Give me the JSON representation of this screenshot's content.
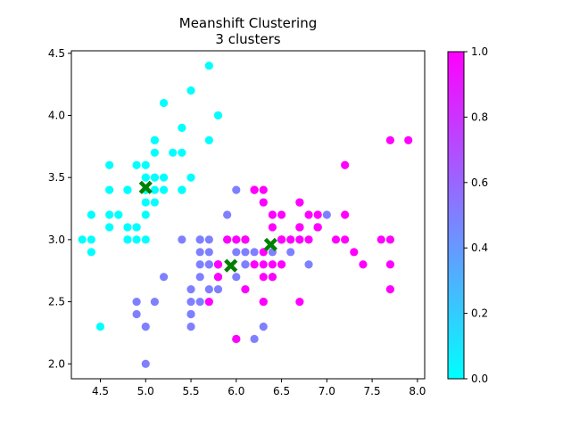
{
  "chart_data": {
    "type": "scatter",
    "title": "Meanshift Clustering",
    "subtitle": "3 clusters",
    "xlabel": "",
    "ylabel": "",
    "xlim": [
      4.18,
      8.08
    ],
    "ylim": [
      1.88,
      4.52
    ],
    "xticks": [
      "4.5",
      "5.0",
      "5.5",
      "6.0",
      "6.5",
      "7.0",
      "7.5",
      "8.0"
    ],
    "yticks": [
      "2.0",
      "2.5",
      "3.0",
      "3.5",
      "4.0",
      "4.5"
    ],
    "grid": false,
    "colorbar": {
      "range": [
        0.0,
        1.0
      ],
      "ticks": [
        "0.0",
        "0.2",
        "0.4",
        "0.6",
        "0.8",
        "1.0"
      ],
      "colormap": "cool",
      "color_min": "#00ffff",
      "color_max": "#ff00ff"
    },
    "series": [
      {
        "label_value": 0.0,
        "color": "#00ffff",
        "points": [
          [
            5.1,
            3.5
          ],
          [
            4.9,
            3.0
          ],
          [
            4.7,
            3.2
          ],
          [
            4.6,
            3.1
          ],
          [
            5.0,
            3.6
          ],
          [
            5.4,
            3.9
          ],
          [
            4.6,
            3.4
          ],
          [
            5.0,
            3.4
          ],
          [
            4.4,
            2.9
          ],
          [
            4.9,
            3.1
          ],
          [
            5.4,
            3.7
          ],
          [
            4.8,
            3.4
          ],
          [
            4.8,
            3.0
          ],
          [
            4.3,
            3.0
          ],
          [
            5.8,
            4.0
          ],
          [
            5.7,
            4.4
          ],
          [
            5.4,
            3.9
          ],
          [
            5.1,
            3.5
          ],
          [
            5.7,
            3.8
          ],
          [
            5.1,
            3.8
          ],
          [
            5.4,
            3.4
          ],
          [
            5.1,
            3.7
          ],
          [
            4.6,
            3.6
          ],
          [
            5.1,
            3.3
          ],
          [
            4.8,
            3.4
          ],
          [
            5.0,
            3.0
          ],
          [
            5.0,
            3.4
          ],
          [
            5.2,
            3.5
          ],
          [
            5.2,
            3.4
          ],
          [
            4.7,
            3.2
          ],
          [
            4.8,
            3.1
          ],
          [
            5.4,
            3.4
          ],
          [
            5.2,
            4.1
          ],
          [
            5.5,
            4.2
          ],
          [
            4.9,
            3.1
          ],
          [
            5.0,
            3.2
          ],
          [
            5.5,
            3.5
          ],
          [
            4.9,
            3.6
          ],
          [
            4.4,
            3.0
          ],
          [
            5.1,
            3.4
          ],
          [
            5.0,
            3.5
          ],
          [
            4.5,
            2.3
          ],
          [
            4.4,
            3.2
          ],
          [
            5.0,
            3.5
          ],
          [
            5.1,
            3.8
          ],
          [
            4.8,
            3.0
          ],
          [
            4.6,
            3.2
          ],
          [
            5.3,
            3.7
          ],
          [
            5.0,
            3.3
          ]
        ]
      },
      {
        "label_value": 0.5,
        "color": "#7f80ff",
        "points": [
          [
            5.5,
            2.3
          ],
          [
            5.7,
            2.8
          ],
          [
            4.9,
            2.4
          ],
          [
            5.2,
            2.7
          ],
          [
            5.0,
            2.0
          ],
          [
            5.9,
            3.0
          ],
          [
            6.0,
            2.2
          ],
          [
            6.1,
            2.9
          ],
          [
            5.6,
            2.9
          ],
          [
            5.6,
            3.0
          ],
          [
            5.8,
            2.7
          ],
          [
            6.2,
            2.2
          ],
          [
            5.6,
            2.5
          ],
          [
            5.9,
            3.2
          ],
          [
            6.1,
            2.8
          ],
          [
            6.3,
            2.5
          ],
          [
            6.1,
            2.8
          ],
          [
            6.4,
            2.9
          ],
          [
            5.7,
            2.6
          ],
          [
            5.5,
            2.4
          ],
          [
            5.5,
            2.4
          ],
          [
            5.8,
            2.7
          ],
          [
            6.0,
            2.7
          ],
          [
            5.4,
            3.0
          ],
          [
            6.0,
            3.4
          ],
          [
            6.3,
            2.3
          ],
          [
            5.6,
            3.0
          ],
          [
            5.5,
            2.5
          ],
          [
            5.5,
            2.6
          ],
          [
            6.1,
            3.0
          ],
          [
            5.8,
            2.6
          ],
          [
            5.0,
            2.3
          ],
          [
            5.6,
            2.7
          ],
          [
            5.7,
            3.0
          ],
          [
            5.7,
            2.9
          ],
          [
            6.2,
            2.9
          ],
          [
            5.1,
            2.5
          ],
          [
            5.7,
            2.8
          ],
          [
            4.9,
            2.5
          ],
          [
            6.0,
            2.9
          ],
          [
            6.6,
            2.9
          ],
          [
            6.5,
            2.8
          ],
          [
            6.6,
            3.0
          ],
          [
            6.8,
            2.8
          ],
          [
            6.7,
            3.0
          ],
          [
            6.0,
            3.0
          ],
          [
            5.6,
            2.8
          ],
          [
            7.0,
            3.2
          ],
          [
            6.4,
            3.2
          ],
          [
            6.9,
            3.1
          ],
          [
            6.3,
            3.3
          ],
          [
            6.7,
            3.1
          ],
          [
            6.2,
            2.8
          ],
          [
            5.8,
            2.8
          ],
          [
            6.4,
            2.7
          ]
        ]
      },
      {
        "label_value": 1.0,
        "color": "#ff00ff",
        "points": [
          [
            6.3,
            3.3
          ],
          [
            7.1,
            3.0
          ],
          [
            6.3,
            2.9
          ],
          [
            6.5,
            3.0
          ],
          [
            7.6,
            3.0
          ],
          [
            7.3,
            2.9
          ],
          [
            6.7,
            2.5
          ],
          [
            7.2,
            3.6
          ],
          [
            6.5,
            3.2
          ],
          [
            6.4,
            2.7
          ],
          [
            6.8,
            3.0
          ],
          [
            5.8,
            2.8
          ],
          [
            6.4,
            3.2
          ],
          [
            6.5,
            3.0
          ],
          [
            7.7,
            3.8
          ],
          [
            7.7,
            2.6
          ],
          [
            6.9,
            3.2
          ],
          [
            7.7,
            2.8
          ],
          [
            6.3,
            2.7
          ],
          [
            6.7,
            3.3
          ],
          [
            7.2,
            3.2
          ],
          [
            6.2,
            2.8
          ],
          [
            6.1,
            3.0
          ],
          [
            6.4,
            2.8
          ],
          [
            7.2,
            3.0
          ],
          [
            7.4,
            2.8
          ],
          [
            7.9,
            3.8
          ],
          [
            6.3,
            2.8
          ],
          [
            6.1,
            2.6
          ],
          [
            7.7,
            3.0
          ],
          [
            6.3,
            3.4
          ],
          [
            6.4,
            3.1
          ],
          [
            6.0,
            3.0
          ],
          [
            6.9,
            3.1
          ],
          [
            6.7,
            3.1
          ],
          [
            6.9,
            3.1
          ],
          [
            5.8,
            2.7
          ],
          [
            6.8,
            3.2
          ],
          [
            6.7,
            3.3
          ],
          [
            6.7,
            3.0
          ],
          [
            6.3,
            2.5
          ],
          [
            6.5,
            3.0
          ],
          [
            6.2,
            3.4
          ],
          [
            5.9,
            3.0
          ],
          [
            6.0,
            2.2
          ],
          [
            5.7,
            2.5
          ],
          [
            5.8,
            2.8
          ],
          [
            6.5,
            2.8
          ],
          [
            6.6,
            3.0
          ],
          [
            6.2,
            3.4
          ],
          [
            6.1,
            3.0
          ],
          [
            6.7,
            3.1
          ]
        ]
      }
    ],
    "cluster_centers": {
      "marker": "X",
      "color": "#008000",
      "points": [
        [
          5.0,
          3.42
        ],
        [
          5.94,
          2.79
        ],
        [
          6.38,
          2.96
        ]
      ]
    }
  }
}
